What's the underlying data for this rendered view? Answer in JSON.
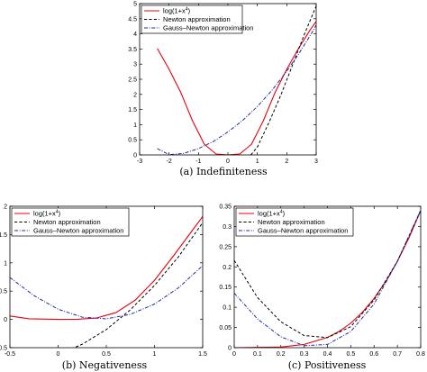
{
  "chart_data": [
    {
      "type": "line",
      "caption": "(a)  Indefiniteness",
      "xlim": [
        -3,
        3
      ],
      "ylim": [
        0,
        5
      ],
      "xticks": [
        "-3",
        "-2",
        "-1",
        "0",
        "1",
        "2",
        "3"
      ],
      "yticks": [
        "0",
        "0.5",
        "1",
        "1.5",
        "2",
        "2.5",
        "3",
        "3.5",
        "4",
        "4.5",
        "5"
      ],
      "legend_position": "top-left",
      "series": [
        {
          "name": "log(1+x⁴)",
          "style": "solid",
          "color": "#e8000b",
          "x": [
            -2.4,
            -2.0,
            -1.6,
            -1.2,
            -0.8,
            -0.4,
            0,
            0.4,
            0.8,
            1.2,
            1.6,
            2.0,
            2.4,
            2.8,
            3.0
          ],
          "y": [
            3.52,
            2.83,
            2.06,
            1.12,
            0.35,
            0.03,
            0,
            0.03,
            0.35,
            1.12,
            2.06,
            2.83,
            3.52,
            4.14,
            4.41
          ]
        },
        {
          "name": "Newton approximation",
          "style": "dashed",
          "color": "#000000",
          "x": [
            0.78,
            1.0,
            1.4,
            1.8,
            2.2,
            2.6,
            3.0
          ],
          "y": [
            0.0,
            0.26,
            1.08,
            1.98,
            2.98,
            3.99,
            4.92
          ]
        },
        {
          "name": "Gauss–Newton approximation",
          "style": "dashdot",
          "color": "#1f2e9e",
          "x": [
            -2.4,
            -2.0,
            -1.5,
            -1.0,
            -0.5,
            0,
            0.5,
            1.0,
            1.5,
            2.0,
            2.4,
            2.8,
            3.0
          ],
          "y": [
            0.21,
            0.01,
            0.05,
            0.21,
            0.44,
            0.76,
            1.14,
            1.6,
            2.14,
            2.77,
            3.33,
            3.95,
            4.29
          ]
        }
      ]
    },
    {
      "type": "line",
      "caption": "(b)  Negativeness",
      "xlim": [
        -0.5,
        1.5
      ],
      "ylim": [
        -0.5,
        2
      ],
      "xticks": [
        "-0.5",
        "0",
        "0.5",
        "1",
        "1.5"
      ],
      "yticks": [
        "-0.5",
        "0",
        "0.5",
        "1",
        "1.5",
        "2"
      ],
      "legend_position": "top-left",
      "series": [
        {
          "name": "log(1+x⁴)",
          "style": "solid",
          "color": "#e8000b",
          "x": [
            -0.5,
            -0.3,
            0,
            0.2,
            0.4,
            0.6,
            0.8,
            1.0,
            1.2,
            1.4,
            1.5
          ],
          "y": [
            0.06,
            0.01,
            0,
            0.002,
            0.025,
            0.12,
            0.34,
            0.69,
            1.13,
            1.59,
            1.82
          ]
        },
        {
          "name": "Newton approximation",
          "style": "dashed",
          "color": "#000000",
          "x": [
            -0.5,
            -0.25,
            0,
            0.25,
            0.5,
            0.75,
            1.0,
            1.25,
            1.5
          ],
          "y": [
            -0.74,
            -0.72,
            -0.62,
            -0.44,
            -0.18,
            0.17,
            0.6,
            1.11,
            1.71
          ]
        },
        {
          "name": "Gauss–Newton approximation",
          "style": "dashdot",
          "color": "#1f2e9e",
          "x": [
            -0.5,
            -0.25,
            0,
            0.25,
            0.5,
            0.75,
            1.0,
            1.25,
            1.5
          ],
          "y": [
            0.74,
            0.42,
            0.18,
            0.04,
            0.01,
            0.09,
            0.27,
            0.56,
            0.95
          ]
        }
      ]
    },
    {
      "type": "line",
      "caption": "(c)  Positiveness",
      "xlim": [
        0,
        0.8
      ],
      "ylim": [
        0,
        0.35
      ],
      "xticks": [
        "0",
        "0.1",
        "0.2",
        "0.3",
        "0.4",
        "0.5",
        "0.6",
        "0.7",
        "0.8"
      ],
      "yticks": [
        "0",
        "0.05",
        "0.1",
        "0.15",
        "0.2",
        "0.25",
        "0.3",
        "0.35"
      ],
      "legend_position": "top-left",
      "series": [
        {
          "name": "log(1+x⁴)",
          "style": "solid",
          "color": "#e8000b",
          "x": [
            0,
            0.2,
            0.3,
            0.4,
            0.45,
            0.5,
            0.55,
            0.6,
            0.65,
            0.7,
            0.75,
            0.8
          ],
          "y": [
            0,
            0.0016,
            0.0081,
            0.0253,
            0.0402,
            0.0606,
            0.0877,
            0.1218,
            0.1636,
            0.2136,
            0.2721,
            0.3392
          ]
        },
        {
          "name": "Newton approximation",
          "style": "dashed",
          "color": "#000000",
          "x": [
            0,
            0.1,
            0.2,
            0.3,
            0.4,
            0.5,
            0.6,
            0.7,
            0.8
          ],
          "y": [
            0.216,
            0.124,
            0.064,
            0.03,
            0.025,
            0.052,
            0.118,
            0.214,
            0.34
          ]
        },
        {
          "name": "Gauss–Newton approximation",
          "style": "dashdot",
          "color": "#1f2e9e",
          "x": [
            0,
            0.1,
            0.2,
            0.3,
            0.4,
            0.5,
            0.6,
            0.7,
            0.8
          ],
          "y": [
            0.135,
            0.071,
            0.027,
            0.005,
            0.008,
            0.04,
            0.108,
            0.214,
            0.34
          ]
        }
      ]
    }
  ]
}
